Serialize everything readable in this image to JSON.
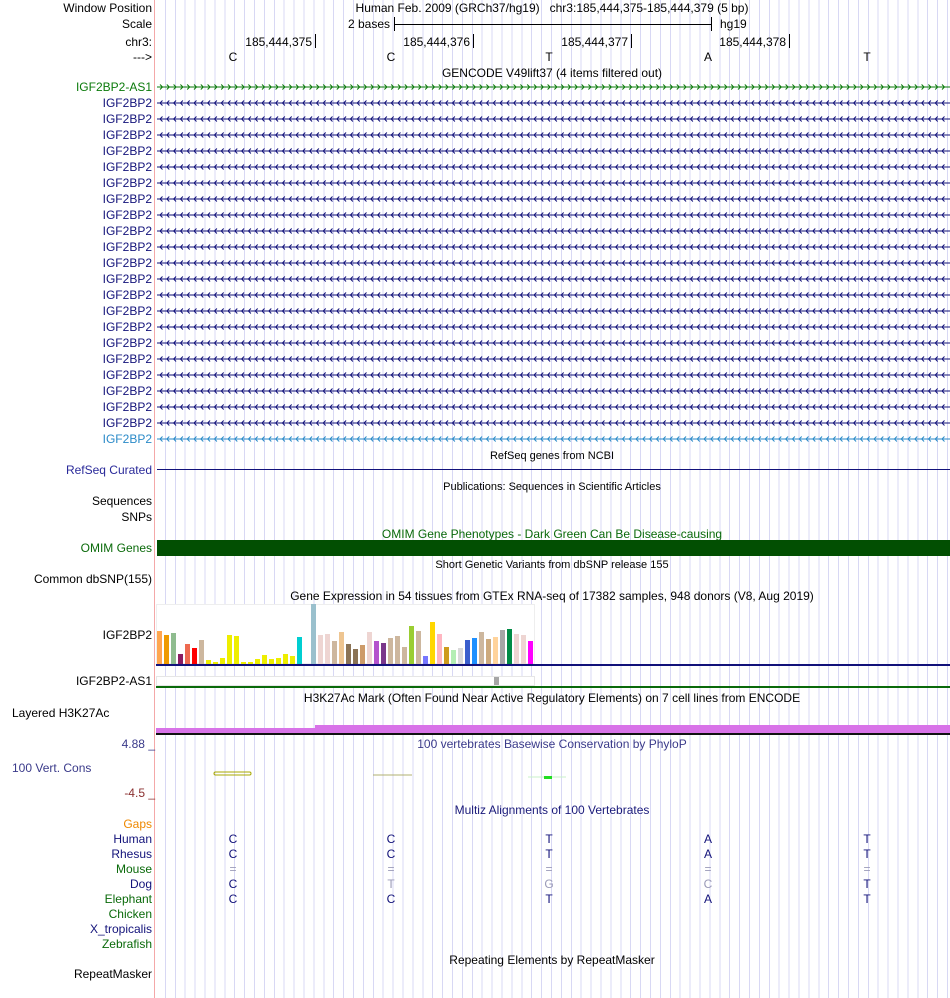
{
  "header": {
    "window_position_label": "Window Position",
    "scale_label": "Scale",
    "chrom_label": "chr3:",
    "strand_label": "--->",
    "title": "Human Feb. 2009 (GRCh37/hg19)   chr3:185,444,375-185,444,379 (5 bp)",
    "scale_text": "2 bases",
    "assembly": "hg19",
    "ruler": [
      "185,444,375",
      "185,444,376",
      "185,444,377",
      "185,444,378"
    ],
    "bases": [
      "C",
      "C",
      "T",
      "A",
      "T"
    ]
  },
  "gencode": {
    "title": "GENCODE V49lift37 (4 items filtered out)",
    "genes": [
      {
        "name": "IGF2BP2-AS1",
        "strand": "+",
        "color": "#0a7a0a"
      },
      {
        "name": "IGF2BP2",
        "strand": "-",
        "color": "#12127a"
      },
      {
        "name": "IGF2BP2",
        "strand": "-",
        "color": "#12127a"
      },
      {
        "name": "IGF2BP2",
        "strand": "-",
        "color": "#12127a"
      },
      {
        "name": "IGF2BP2",
        "strand": "-",
        "color": "#12127a"
      },
      {
        "name": "IGF2BP2",
        "strand": "-",
        "color": "#12127a"
      },
      {
        "name": "IGF2BP2",
        "strand": "-",
        "color": "#12127a"
      },
      {
        "name": "IGF2BP2",
        "strand": "-",
        "color": "#12127a"
      },
      {
        "name": "IGF2BP2",
        "strand": "-",
        "color": "#12127a"
      },
      {
        "name": "IGF2BP2",
        "strand": "-",
        "color": "#12127a"
      },
      {
        "name": "IGF2BP2",
        "strand": "-",
        "color": "#12127a"
      },
      {
        "name": "IGF2BP2",
        "strand": "-",
        "color": "#12127a"
      },
      {
        "name": "IGF2BP2",
        "strand": "-",
        "color": "#12127a"
      },
      {
        "name": "IGF2BP2",
        "strand": "-",
        "color": "#12127a"
      },
      {
        "name": "IGF2BP2",
        "strand": "-",
        "color": "#12127a"
      },
      {
        "name": "IGF2BP2",
        "strand": "-",
        "color": "#12127a"
      },
      {
        "name": "IGF2BP2",
        "strand": "-",
        "color": "#12127a"
      },
      {
        "name": "IGF2BP2",
        "strand": "-",
        "color": "#12127a"
      },
      {
        "name": "IGF2BP2",
        "strand": "-",
        "color": "#12127a"
      },
      {
        "name": "IGF2BP2",
        "strand": "-",
        "color": "#12127a"
      },
      {
        "name": "IGF2BP2",
        "strand": "-",
        "color": "#12127a"
      },
      {
        "name": "IGF2BP2",
        "strand": "-",
        "color": "#12127a"
      },
      {
        "name": "IGF2BP2",
        "strand": "-",
        "color": "#2a8ac8"
      }
    ]
  },
  "refseq": {
    "title": "RefSeq genes from NCBI",
    "label": "RefSeq Curated"
  },
  "publications": {
    "title": "Publications: Sequences in Scientific Articles",
    "labels": [
      "Sequences",
      "SNPs"
    ]
  },
  "omim": {
    "title": "OMIM Gene Phenotypes - Dark Green Can Be Disease-causing",
    "label": "OMIM Genes",
    "color": "#024f02"
  },
  "dbsnp": {
    "title": "Short Genetic Variants from dbSNP release 155",
    "label": "Common dbSNP(155)"
  },
  "gtex": {
    "title": "Gene Expression in 54 tissues from GTEx RNA-seq of 17382 samples, 948 donors (V8, Aug 2019)",
    "gene_label": "IGF2BP2",
    "as1_label": "IGF2BP2-AS1"
  },
  "chart_data": {
    "type": "bar",
    "title": "Gene Expression in 54 tissues from GTEx RNA-seq of 17382 samples, 948 donors (V8, Aug 2019)",
    "xlabel": "",
    "ylabel": "",
    "note": "relative expression, max = 60",
    "values": [
      33,
      29,
      31,
      10,
      20,
      16,
      24,
      4,
      2,
      6,
      29,
      28,
      2,
      2,
      5,
      9,
      5,
      6,
      10,
      8,
      27,
      0,
      60,
      29,
      30,
      23,
      32,
      20,
      15,
      19,
      32,
      23,
      21,
      26,
      28,
      17,
      38,
      33,
      8,
      42,
      30,
      17,
      14,
      16,
      24,
      26,
      32,
      25,
      27,
      34,
      35,
      30,
      29,
      23
    ],
    "colors": [
      "#ffa54f",
      "#ee9a00",
      "#8fbc8f",
      "#8b1c62",
      "#ee6a50",
      "#ff0000",
      "#cdb79e",
      "#eeee00",
      "#eeee00",
      "#eeee00",
      "#eeee00",
      "#eeee00",
      "#eeee00",
      "#eeee00",
      "#eeee00",
      "#eeee00",
      "#eeee00",
      "#eeee00",
      "#eeee00",
      "#eeee00",
      "#00ced1",
      "#ffffff",
      "#9ac0cd",
      "#eed5d2",
      "#eed5d2",
      "#cdb79e",
      "#eec591",
      "#8b7355",
      "#8b7355",
      "#cd9b69",
      "#eed5d2",
      "#b452cd",
      "#7a378b",
      "#cdb79e",
      "#cdb79e",
      "#cdb79e",
      "#9acd32",
      "#cdb79e",
      "#7777ff",
      "#ffd700",
      "#ffb6c1",
      "#cd9b1d",
      "#b4eeb4",
      "#d9d9d9",
      "#3a5fcd",
      "#1e90ff",
      "#cdb79e",
      "#cdaa7d",
      "#ffd39b",
      "#a6a6a6",
      "#008b45",
      "#eed5d2",
      "#eed5d2",
      "#ff00ff"
    ],
    "as1_values": [
      0,
      0,
      0,
      0,
      0,
      0,
      0,
      0,
      0,
      0,
      0,
      0,
      0,
      0,
      0,
      0,
      0,
      0,
      0,
      0,
      0,
      0,
      0,
      0,
      0,
      0,
      0,
      0,
      0,
      0,
      0,
      0,
      0,
      0,
      0,
      0,
      0,
      0,
      0,
      0,
      0,
      0,
      0,
      0,
      0,
      0,
      0,
      0,
      0,
      1,
      0,
      0,
      0,
      0
    ]
  },
  "h3k27ac": {
    "title": "H3K27Ac Mark (Often Found Near Active Regulatory Elements) on 7 cell lines from ENCODE",
    "label": "Layered H3K27Ac",
    "color": "#d873e8"
  },
  "conservation": {
    "title": "100 vertebrates Basewise Conservation by PhyloP",
    "label": "100 Vert. Cons",
    "max": "4.88 _",
    "min": "-4.5 _"
  },
  "multiz": {
    "title": "Multiz Alignments of 100 Vertebrates",
    "gaps_label": "Gaps",
    "species": [
      {
        "name": "Human",
        "color": "#12127a",
        "bases": [
          "C",
          "C",
          "T",
          "A",
          "T"
        ],
        "faded": [
          false,
          false,
          false,
          false,
          false
        ]
      },
      {
        "name": "Rhesus",
        "color": "#12127a",
        "bases": [
          "C",
          "C",
          "T",
          "A",
          "T"
        ],
        "faded": [
          false,
          false,
          false,
          false,
          false
        ]
      },
      {
        "name": "Mouse",
        "color": "#0a6a0a",
        "bases": [
          "=",
          "=",
          "=",
          "=",
          "="
        ],
        "faded": [
          true,
          true,
          true,
          true,
          true
        ]
      },
      {
        "name": "Dog",
        "color": "#12127a",
        "bases": [
          "C",
          "T",
          "G",
          "C",
          "T"
        ],
        "faded": [
          false,
          true,
          true,
          true,
          false
        ]
      },
      {
        "name": "Elephant",
        "color": "#0a6a0a",
        "bases": [
          "C",
          "C",
          "T",
          "A",
          "T"
        ],
        "faded": [
          false,
          false,
          false,
          false,
          false
        ]
      },
      {
        "name": "Chicken",
        "color": "#0a6a0a",
        "bases": [
          "",
          "",
          "",
          "",
          ""
        ],
        "faded": [
          false,
          false,
          false,
          false,
          false
        ]
      },
      {
        "name": "X_tropicalis",
        "color": "#12127a",
        "bases": [
          "",
          "",
          "",
          "",
          ""
        ],
        "faded": [
          false,
          false,
          false,
          false,
          false
        ]
      },
      {
        "name": "Zebrafish",
        "color": "#0a6a0a",
        "bases": [
          "",
          "",
          "",
          "",
          ""
        ],
        "faded": [
          false,
          false,
          false,
          false,
          false
        ]
      }
    ]
  },
  "repeatmasker": {
    "title": "Repeating Elements by RepeatMasker",
    "label": "RepeatMasker"
  }
}
